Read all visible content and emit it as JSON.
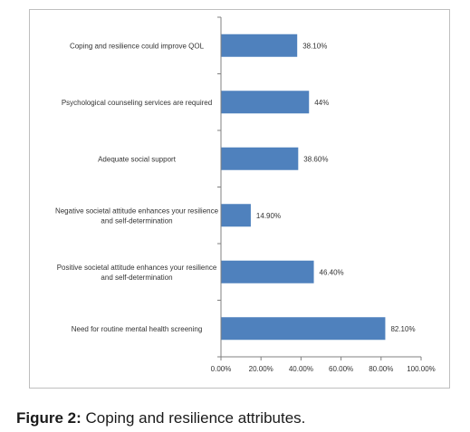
{
  "caption": {
    "label": "Figure 2:",
    "text": " Coping and resilience attributes."
  },
  "chart_data": {
    "type": "bar",
    "orientation": "horizontal",
    "categories": [
      "Coping and resilience could improve QOL",
      "Psychological counseling services are required",
      "Adequate social support",
      "Negative societal attitude enhances your resilience and self-determination",
      "Positive societal attitude enhances your resilience and self-determination",
      "Need for routine mental health screening"
    ],
    "category_lines": [
      [
        "Coping and resilience could improve QOL"
      ],
      [
        "Psychological counseling services are required"
      ],
      [
        "Adequate social support"
      ],
      [
        "Negative societal attitude enhances your resilience",
        "and self-determination"
      ],
      [
        "Positive societal attitude enhances your resilience",
        "and self-determination"
      ],
      [
        "Need for routine mental health screening"
      ]
    ],
    "values": [
      38.1,
      44,
      38.6,
      14.9,
      46.4,
      82.1
    ],
    "data_labels": [
      "38.10%",
      "44%",
      "38.60%",
      "14.90%",
      "46.40%",
      "82.10%"
    ],
    "xlim": [
      0,
      100
    ],
    "xticks": [
      0,
      20,
      40,
      60,
      80,
      100
    ],
    "xtick_labels": [
      "0.00%",
      "20.00%",
      "40.00%",
      "60.00%",
      "80.00%",
      "100.00%"
    ],
    "bar_color": "#4f81bd",
    "grid": false,
    "legend": "none"
  }
}
